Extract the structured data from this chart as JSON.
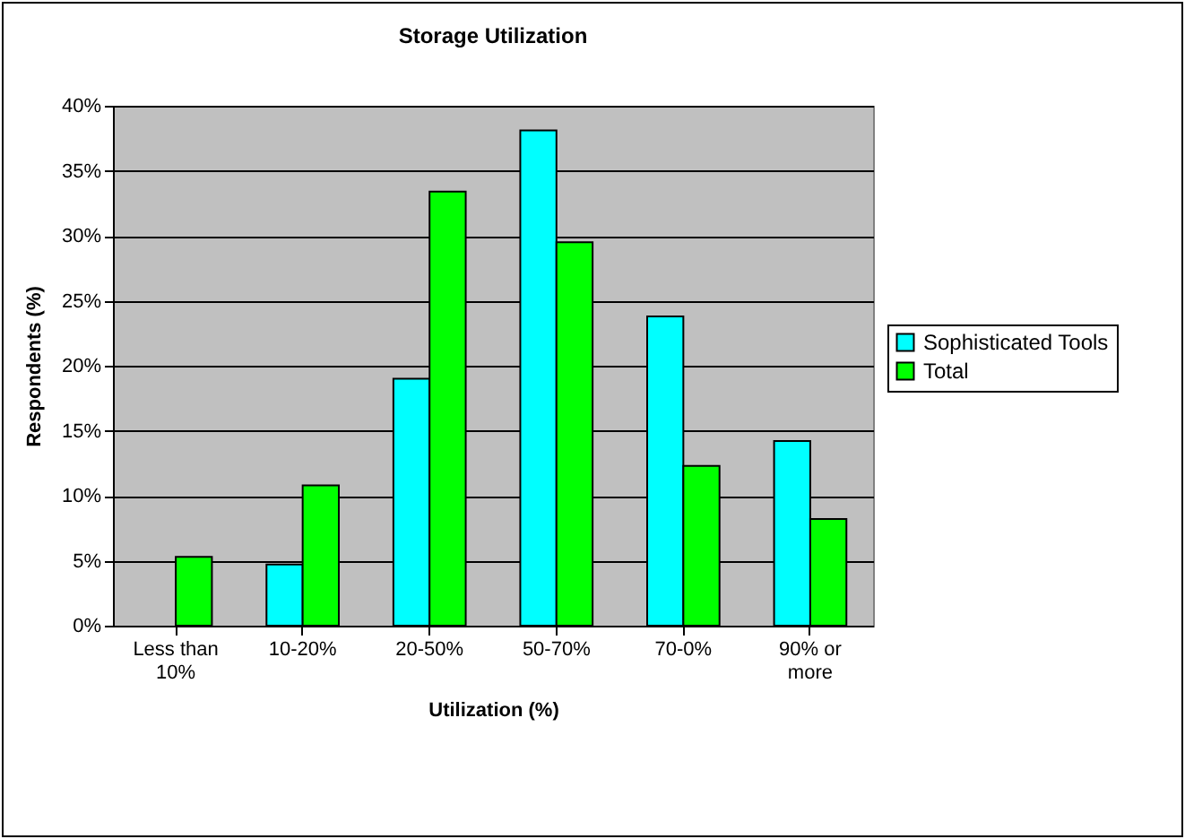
{
  "chart_data": {
    "type": "bar",
    "title": "Storage Utilization",
    "xlabel": "Utilization (%)",
    "ylabel": "Respondents (%)",
    "categories": [
      "Less than 10%",
      "10-20%",
      "20-50%",
      "50-70%",
      "70-0%",
      "90% or more"
    ],
    "series": [
      {
        "name": "Sophisticated Tools",
        "color": "#00ffff",
        "values": [
          null,
          4.7,
          19.0,
          38.1,
          23.8,
          14.2
        ]
      },
      {
        "name": "Total",
        "color": "#00ff00",
        "values": [
          5.3,
          10.8,
          33.4,
          29.5,
          12.3,
          8.2
        ]
      }
    ],
    "ylim": [
      0,
      40
    ],
    "yticks": [
      {
        "value": 0,
        "label": "0%"
      },
      {
        "value": 5,
        "label": "5%"
      },
      {
        "value": 10,
        "label": "10%"
      },
      {
        "value": 15,
        "label": "15%"
      },
      {
        "value": 20,
        "label": "20%"
      },
      {
        "value": 25,
        "label": "25%"
      },
      {
        "value": 30,
        "label": "30%"
      },
      {
        "value": 35,
        "label": "35%"
      },
      {
        "value": 40,
        "label": "40%"
      }
    ],
    "grid": "y",
    "legend": "right"
  }
}
